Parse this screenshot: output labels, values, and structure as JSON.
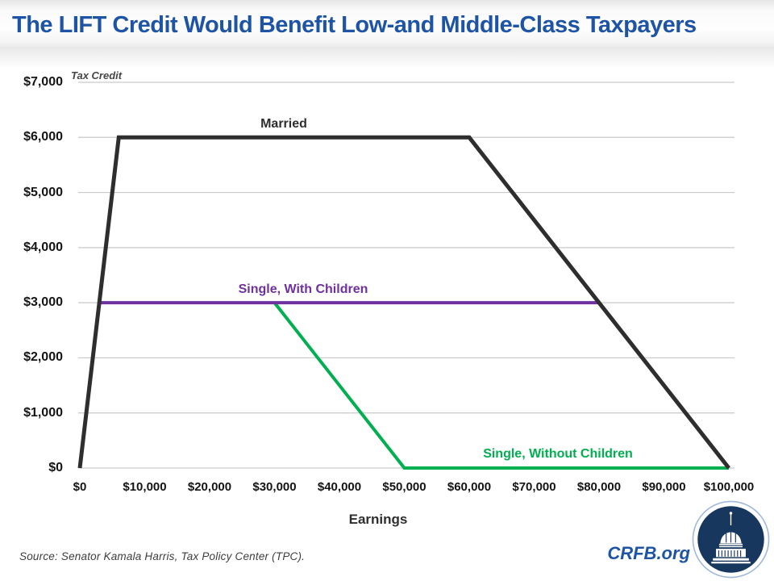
{
  "title": "The LIFT Credit Would Benefit Low-and Middle-Class Taxpayers",
  "footer": {
    "source": "Source: Senator Kamala Harris, Tax Policy Center (TPC).",
    "brand": "CRFB.org",
    "logo_icon": "capitol-dome-icon"
  },
  "colors": {
    "title_blue": "#1d54a6",
    "brand_blue": "#1d54a6",
    "logo_navy": "#17375e",
    "logo_rim_light_blue": "#9fb8d8",
    "gridline_gray": "#c9c9c9",
    "married_black": "#2e2e2e",
    "single_with_children_purple": "#7030a0",
    "single_without_children_green": "#00b050"
  },
  "chart_data": {
    "type": "line",
    "title": "",
    "xlabel": "Earnings",
    "ylabel": "Tax Credit",
    "xlim": [
      0,
      100000
    ],
    "ylim": [
      0,
      7000
    ],
    "grid": "horizontal",
    "legend_position": "inline-labels",
    "x_ticks": [
      {
        "v": 0,
        "label": "$0"
      },
      {
        "v": 10000,
        "label": "$10,000"
      },
      {
        "v": 20000,
        "label": "$20,000"
      },
      {
        "v": 30000,
        "label": "$30,000"
      },
      {
        "v": 40000,
        "label": "$40,000"
      },
      {
        "v": 50000,
        "label": "$50,000"
      },
      {
        "v": 60000,
        "label": "$60,000"
      },
      {
        "v": 70000,
        "label": "$70,000"
      },
      {
        "v": 80000,
        "label": "$80,000"
      },
      {
        "v": 90000,
        "label": "$90,000"
      },
      {
        "v": 100000,
        "label": "$100,000"
      }
    ],
    "y_ticks": [
      {
        "v": 0,
        "label": "$0"
      },
      {
        "v": 1000,
        "label": "$1,000"
      },
      {
        "v": 2000,
        "label": "$2,000"
      },
      {
        "v": 3000,
        "label": "$3,000"
      },
      {
        "v": 4000,
        "label": "$4,000"
      },
      {
        "v": 5000,
        "label": "$5,000"
      },
      {
        "v": 6000,
        "label": "$6,000"
      },
      {
        "v": 7000,
        "label": "$7,000"
      }
    ],
    "series": [
      {
        "name": "Single, Without Children",
        "color": "#00b050",
        "stroke_width": 4,
        "points": [
          [
            30000,
            3000
          ],
          [
            50000,
            0
          ],
          [
            100000,
            0
          ]
        ]
      },
      {
        "name": "Single, With Children",
        "color": "#7030a0",
        "stroke_width": 4,
        "points": [
          [
            3000,
            3000
          ],
          [
            80000,
            3000
          ]
        ]
      },
      {
        "name": "Married",
        "color": "#2e2e2e",
        "stroke_width": 5,
        "points": [
          [
            0,
            0
          ],
          [
            6000,
            6000
          ],
          [
            60000,
            6000
          ],
          [
            100000,
            0
          ]
        ]
      }
    ]
  }
}
